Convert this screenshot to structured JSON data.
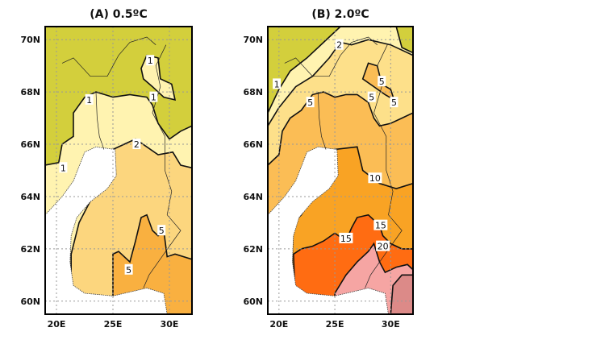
{
  "panels": [
    {
      "title": "(A)  0.5ºC",
      "lat_ticks": [
        "70N",
        "68N",
        "66N",
        "64N",
        "62N",
        "60N"
      ],
      "lon_ticks": [
        "20E",
        "25E",
        "30E"
      ],
      "contour_labels": [
        {
          "text": "1",
          "lon": 28.3,
          "lat": 69.2
        },
        {
          "text": "1",
          "lon": 28.6,
          "lat": 67.8
        },
        {
          "text": "1",
          "lon": 22.9,
          "lat": 67.7
        },
        {
          "text": "1",
          "lon": 20.6,
          "lat": 65.1
        },
        {
          "text": "2",
          "lon": 27.1,
          "lat": 66.0
        },
        {
          "text": "5",
          "lon": 29.3,
          "lat": 62.7
        },
        {
          "text": "5",
          "lon": 26.4,
          "lat": 61.2
        }
      ]
    },
    {
      "title": "(B)  2.0ºC",
      "lat_ticks": [
        "70N",
        "68N",
        "66N",
        "64N",
        "62N",
        "60N"
      ],
      "lon_ticks": [
        "20E",
        "25E",
        "30E"
      ],
      "contour_labels": [
        {
          "text": "2",
          "lon": 25.4,
          "lat": 69.8
        },
        {
          "text": "1",
          "lon": 19.8,
          "lat": 68.3
        },
        {
          "text": "5",
          "lon": 22.8,
          "lat": 67.6
        },
        {
          "text": "5",
          "lon": 29.2,
          "lat": 68.4
        },
        {
          "text": "5",
          "lon": 28.3,
          "lat": 67.8
        },
        {
          "text": "5",
          "lon": 30.3,
          "lat": 67.6
        },
        {
          "text": "10",
          "lon": 28.6,
          "lat": 64.7
        },
        {
          "text": "15",
          "lon": 29.1,
          "lat": 62.9
        },
        {
          "text": "15",
          "lon": 26.0,
          "lat": 62.4
        },
        {
          "text": "20",
          "lon": 29.3,
          "lat": 62.1
        }
      ]
    }
  ],
  "colors": {
    "c0": "#d3cf3c",
    "c1": "#fff3b0",
    "c2": "#fde08a",
    "c5": "#fbbd55",
    "c10": "#f9a324",
    "c15": "#ff6c12",
    "c20": "#f6a5a3",
    "c25": "#dc8a88",
    "a2": "#fcd67e",
    "a5": "#f9b040"
  }
}
